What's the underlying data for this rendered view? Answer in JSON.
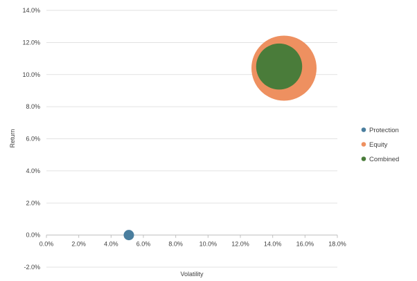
{
  "chart_data": {
    "type": "bubble",
    "xlabel": "Volatility",
    "ylabel": "Return",
    "xlim": [
      0,
      0.18
    ],
    "ylim": [
      -0.02,
      0.14
    ],
    "x_ticks": [
      "0.0%",
      "2.0%",
      "4.0%",
      "6.0%",
      "8.0%",
      "10.0%",
      "12.0%",
      "14.0%",
      "16.0%",
      "18.0%"
    ],
    "y_ticks": [
      "-2.0%",
      "0.0%",
      "2.0%",
      "4.0%",
      "6.0%",
      "8.0%",
      "10.0%",
      "12.0%",
      "14.0%"
    ],
    "grid": "horizontal",
    "legend_position": "right",
    "series": [
      {
        "name": "Protection",
        "color": "#4a7e9e",
        "x": 0.051,
        "y": 0.0,
        "size": 1
      },
      {
        "name": "Equity",
        "color": "#ee9060",
        "x": 0.147,
        "y": 0.104,
        "size": 60
      },
      {
        "name": "Combined",
        "color": "#4a7c3a",
        "x": 0.144,
        "y": 0.105,
        "size": 30
      }
    ]
  }
}
